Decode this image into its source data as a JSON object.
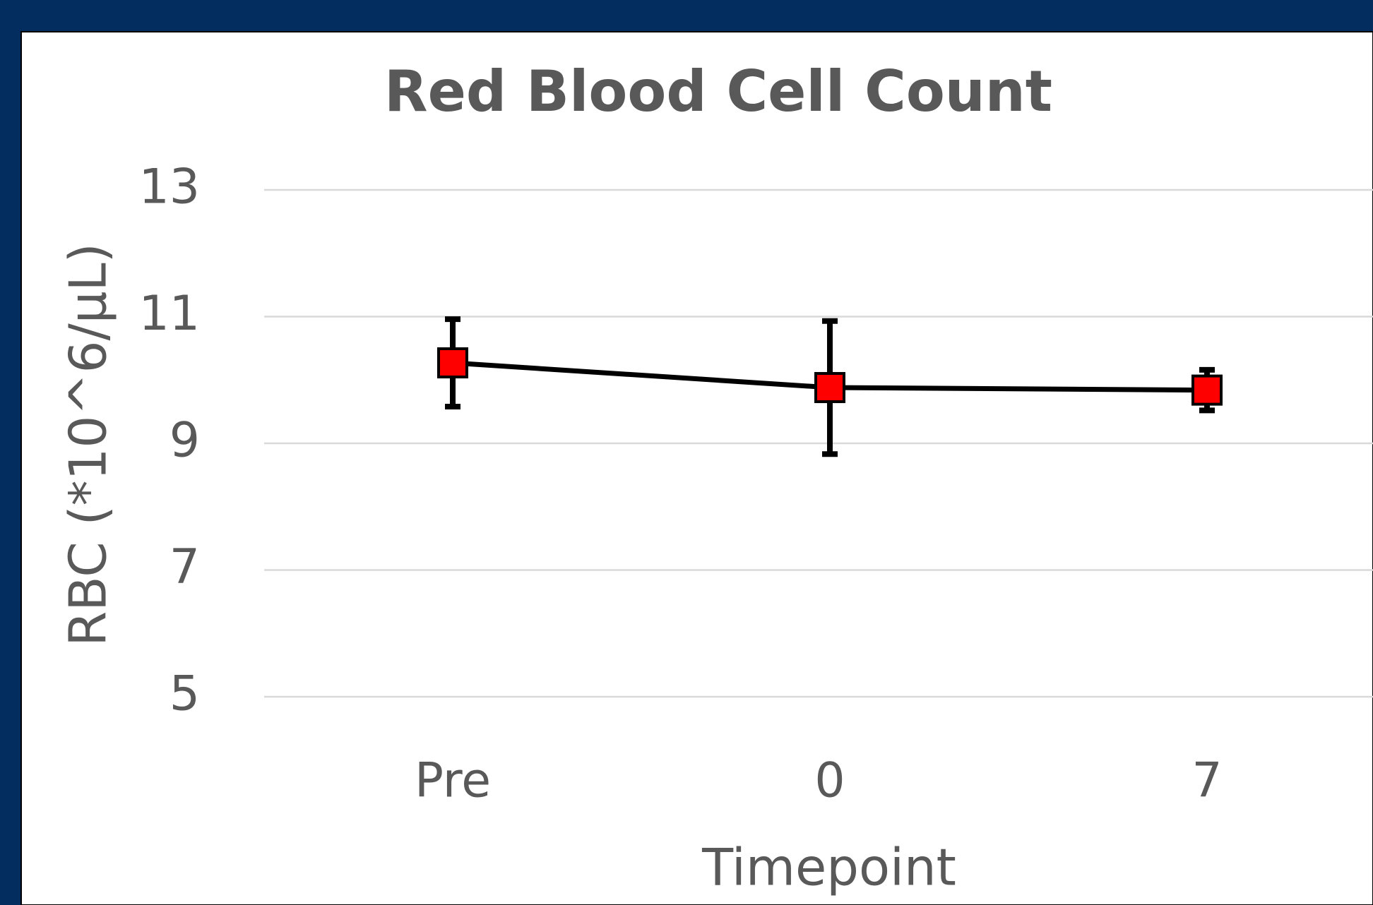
{
  "chart_data": {
    "type": "line",
    "title": "Red Blood Cell Count",
    "x_label": "Timepoint",
    "y_label": "RBC (*10^6/µL)",
    "categories": [
      "Pre",
      "0",
      "7"
    ],
    "values": [
      10.27,
      9.88,
      9.84
    ],
    "errors": [
      0.69,
      1.05,
      0.32
    ],
    "color": "#ff0000",
    "line_color": "#000000",
    "ylim": [
      5,
      13
    ],
    "yticks": [
      5,
      7,
      9,
      11,
      13
    ],
    "grid": true
  }
}
